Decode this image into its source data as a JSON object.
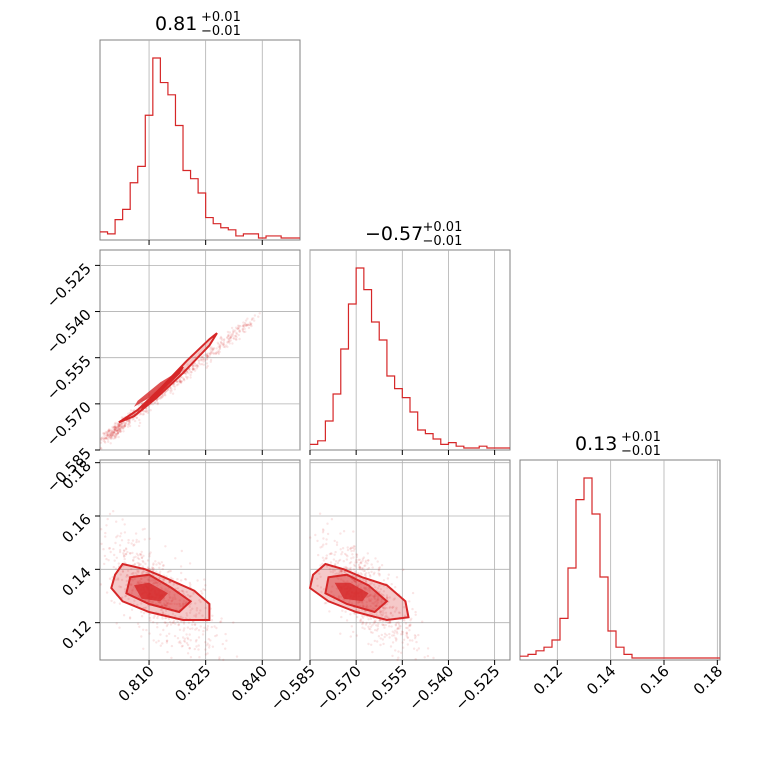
{
  "chart_data": {
    "type": "corner",
    "color": "#d62728",
    "parameters": [
      {
        "range": [
          0.797,
          0.85
        ],
        "ticks": [
          0.81,
          0.825,
          0.84
        ],
        "tick_labels": [
          "0.810",
          "0.825",
          "0.840"
        ],
        "title": {
          "main": "0.81",
          "plus": "+0.01",
          "minus": "−0.01"
        },
        "hist_edges": [
          0.797,
          0.799,
          0.801,
          0.803,
          0.805,
          0.807,
          0.809,
          0.811,
          0.813,
          0.815,
          0.817,
          0.819,
          0.821,
          0.823,
          0.825,
          0.827,
          0.829,
          0.831,
          0.833,
          0.835,
          0.837,
          0.839,
          0.841,
          0.843,
          0.845,
          0.847,
          0.85
        ],
        "hist_values": [
          3,
          2,
          9,
          14,
          27,
          35,
          60,
          88,
          76,
          70,
          55,
          33,
          29,
          22,
          10,
          7,
          5,
          4,
          1,
          2,
          2,
          0,
          1,
          1,
          0,
          0
        ]
      },
      {
        "range": [
          -0.585,
          -0.52
        ],
        "ticks": [
          -0.585,
          -0.57,
          -0.555,
          -0.54,
          -0.525
        ],
        "tick_labels": [
          "−0.585",
          "−0.570",
          "−0.555",
          "−0.540",
          "−0.525"
        ],
        "title": {
          "main": "−0.57",
          "plus": "+0.01",
          "minus": "−0.01"
        },
        "hist_edges": [
          -0.585,
          -0.5825,
          -0.58,
          -0.5775,
          -0.575,
          -0.5725,
          -0.57,
          -0.5675,
          -0.565,
          -0.5625,
          -0.56,
          -0.5575,
          -0.555,
          -0.5525,
          -0.55,
          -0.5475,
          -0.545,
          -0.5425,
          -0.54,
          -0.5375,
          -0.535,
          -0.5325,
          -0.53,
          -0.5275,
          -0.525,
          -0.5225,
          -0.52
        ],
        "hist_values": [
          2,
          4,
          15,
          30,
          55,
          80,
          100,
          88,
          70,
          60,
          40,
          33,
          28,
          20,
          10,
          8,
          5,
          2,
          3,
          1,
          0,
          0,
          1,
          0,
          0,
          0
        ]
      },
      {
        "range": [
          0.106,
          0.181
        ],
        "ticks": [
          0.12,
          0.14,
          0.16,
          0.18
        ],
        "tick_labels": [
          "0.12",
          "0.14",
          "0.16",
          "0.18"
        ],
        "title": {
          "main": "0.13",
          "plus": "+0.01",
          "minus": "−0.01"
        },
        "hist_edges": [
          0.106,
          0.109,
          0.112,
          0.115,
          0.118,
          0.121,
          0.124,
          0.127,
          0.13,
          0.133,
          0.136,
          0.139,
          0.142,
          0.145,
          0.148,
          0.151,
          0.154,
          0.157,
          0.16,
          0.163,
          0.166,
          0.169,
          0.172,
          0.175,
          0.178,
          0.181
        ],
        "hist_values": [
          1,
          2,
          4,
          6,
          10,
          22,
          50,
          88,
          100,
          80,
          45,
          15,
          6,
          2,
          0,
          0,
          0,
          0,
          0,
          0,
          0,
          0,
          0,
          0,
          0
        ]
      }
    ],
    "pairs": [
      {
        "x_param": 0,
        "y_param": 1,
        "contours": [
          [
            [
              0.807,
              -0.572
            ],
            [
              0.813,
              -0.565
            ],
            [
              0.82,
              -0.556
            ],
            [
              0.826,
              -0.549
            ],
            [
              0.828,
              -0.547
            ],
            [
              0.826,
              -0.551
            ],
            [
              0.819,
              -0.56
            ],
            [
              0.812,
              -0.568
            ],
            [
              0.806,
              -0.574
            ],
            [
              0.802,
              -0.576
            ]
          ],
          [
            [
              0.809,
              -0.57
            ],
            [
              0.814,
              -0.564
            ],
            [
              0.819,
              -0.558
            ],
            [
              0.818,
              -0.56
            ],
            [
              0.813,
              -0.566
            ],
            [
              0.808,
              -0.572
            ]
          ]
        ],
        "core": [
          [
            0.807,
            -0.569
          ],
          [
            0.813,
            -0.563
          ],
          [
            0.817,
            -0.56
          ],
          [
            0.815,
            -0.563
          ],
          [
            0.81,
            -0.568
          ],
          [
            0.806,
            -0.571
          ]
        ],
        "scatter_line": {
          "slope": 0.98,
          "intercept": -1.3636,
          "spread": 0.0012,
          "x_range": [
            0.797,
            0.848
          ]
        }
      },
      {
        "x_param": 0,
        "y_param": 2,
        "contours": [
          [
            [
              0.801,
              0.138
            ],
            [
              0.803,
              0.142
            ],
            [
              0.809,
              0.14
            ],
            [
              0.814,
              0.137
            ],
            [
              0.822,
              0.132
            ],
            [
              0.826,
              0.127
            ],
            [
              0.826,
              0.121
            ],
            [
              0.819,
              0.121
            ],
            [
              0.81,
              0.124
            ],
            [
              0.803,
              0.128
            ],
            [
              0.8,
              0.133
            ]
          ],
          [
            [
              0.805,
              0.137
            ],
            [
              0.81,
              0.138
            ],
            [
              0.816,
              0.133
            ],
            [
              0.821,
              0.128
            ],
            [
              0.818,
              0.124
            ],
            [
              0.81,
              0.127
            ],
            [
              0.804,
              0.131
            ]
          ]
        ],
        "core": [
          [
            0.806,
            0.134
          ],
          [
            0.81,
            0.135
          ],
          [
            0.815,
            0.131
          ],
          [
            0.813,
            0.128
          ],
          [
            0.808,
            0.129
          ]
        ],
        "scatter_center": [
          0.812,
          0.131
        ],
        "scatter_cov": [
          [
            6e-05,
            -6e-05
          ],
          [
            -6e-05,
            0.00012
          ]
        ]
      },
      {
        "x_param": 1,
        "y_param": 2,
        "contours": [
          [
            [
              -0.584,
              0.138
            ],
            [
              -0.58,
              0.142
            ],
            [
              -0.574,
              0.14
            ],
            [
              -0.568,
              0.137
            ],
            [
              -0.56,
              0.134
            ],
            [
              -0.554,
              0.128
            ],
            [
              -0.553,
              0.122
            ],
            [
              -0.56,
              0.121
            ],
            [
              -0.57,
              0.124
            ],
            [
              -0.579,
              0.128
            ],
            [
              -0.585,
              0.133
            ]
          ],
          [
            [
              -0.579,
              0.137
            ],
            [
              -0.573,
              0.138
            ],
            [
              -0.566,
              0.134
            ],
            [
              -0.56,
              0.128
            ],
            [
              -0.564,
              0.124
            ],
            [
              -0.573,
              0.127
            ],
            [
              -0.58,
              0.131
            ]
          ]
        ],
        "core": [
          [
            -0.577,
            0.135
          ],
          [
            -0.572,
            0.135
          ],
          [
            -0.566,
            0.131
          ],
          [
            -0.568,
            0.128
          ],
          [
            -0.574,
            0.129
          ]
        ],
        "scatter_center": [
          -0.567,
          0.131
        ],
        "scatter_cov": [
          [
            6e-05,
            -6e-05
          ],
          [
            -6e-05,
            0.00012
          ]
        ]
      }
    ]
  }
}
